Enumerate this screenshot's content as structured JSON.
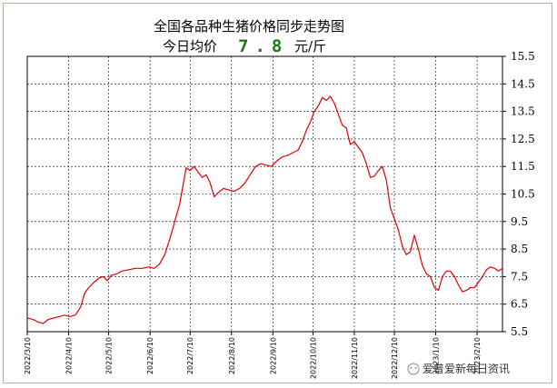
{
  "title": "全国各品种生猪价格同步走势图",
  "today": {
    "label": "今日均价",
    "value": "7.8",
    "unit": "元/斤",
    "value_color": "#1a7a1a"
  },
  "watermark": "爱普爱新每日资讯",
  "colors": {
    "line": "#e00000",
    "axis": "#000000",
    "grid": "#000000"
  },
  "chart_data": {
    "type": "line",
    "title": "全国各品种生猪价格同步走势图",
    "ylim": [
      5.5,
      15.5
    ],
    "yticks": [
      "15.5",
      "14.5",
      "13.5",
      "12.5",
      "11.5",
      "10.5",
      "9.5",
      "8.5",
      "7.5",
      "6.5",
      "5.5"
    ],
    "xlim": [
      "2022-03-10",
      "2023-03-01"
    ],
    "xticks": [
      "2022/3/10",
      "2022/4/10",
      "2022/5/10",
      "2022/6/10",
      "2022/7/10",
      "2022/8/10",
      "2022/9/10",
      "2022/10/10",
      "2022/11/10",
      "2022/12/10",
      "2023/1/10",
      "2023/2/10"
    ],
    "grid": true,
    "series": [
      {
        "points": [
          [
            "2022-03-10",
            6.0
          ],
          [
            "2022-03-14",
            5.95
          ],
          [
            "2022-03-18",
            5.85
          ],
          [
            "2022-03-22",
            5.8
          ],
          [
            "2022-03-26",
            5.95
          ],
          [
            "2022-03-30",
            6.0
          ],
          [
            "2022-04-03",
            6.05
          ],
          [
            "2022-04-07",
            6.1
          ],
          [
            "2022-04-11",
            6.05
          ],
          [
            "2022-04-15",
            6.1
          ],
          [
            "2022-04-19",
            6.4
          ],
          [
            "2022-04-22",
            6.9
          ],
          [
            "2022-04-25",
            7.1
          ],
          [
            "2022-04-29",
            7.3
          ],
          [
            "2022-05-03",
            7.45
          ],
          [
            "2022-05-06",
            7.5
          ],
          [
            "2022-05-09",
            7.35
          ],
          [
            "2022-05-12",
            7.55
          ],
          [
            "2022-05-16",
            7.6
          ],
          [
            "2022-05-20",
            7.7
          ],
          [
            "2022-05-25",
            7.75
          ],
          [
            "2022-05-30",
            7.8
          ],
          [
            "2022-06-04",
            7.8
          ],
          [
            "2022-06-09",
            7.85
          ],
          [
            "2022-06-13",
            7.8
          ],
          [
            "2022-06-17",
            7.95
          ],
          [
            "2022-06-21",
            8.3
          ],
          [
            "2022-06-25",
            8.9
          ],
          [
            "2022-06-29",
            9.6
          ],
          [
            "2022-07-02",
            10.1
          ],
          [
            "2022-07-05",
            10.9
          ],
          [
            "2022-07-07",
            11.45
          ],
          [
            "2022-07-10",
            11.35
          ],
          [
            "2022-07-13",
            11.5
          ],
          [
            "2022-07-16",
            11.3
          ],
          [
            "2022-07-19",
            11.1
          ],
          [
            "2022-07-22",
            11.2
          ],
          [
            "2022-07-25",
            10.9
          ],
          [
            "2022-07-28",
            10.4
          ],
          [
            "2022-07-31",
            10.55
          ],
          [
            "2022-08-04",
            10.7
          ],
          [
            "2022-08-08",
            10.65
          ],
          [
            "2022-08-12",
            10.6
          ],
          [
            "2022-08-16",
            10.7
          ],
          [
            "2022-08-20",
            10.9
          ],
          [
            "2022-08-24",
            11.2
          ],
          [
            "2022-08-28",
            11.5
          ],
          [
            "2022-09-01",
            11.6
          ],
          [
            "2022-09-05",
            11.55
          ],
          [
            "2022-09-09",
            11.5
          ],
          [
            "2022-09-13",
            11.7
          ],
          [
            "2022-09-17",
            11.85
          ],
          [
            "2022-09-21",
            11.9
          ],
          [
            "2022-09-25",
            12.0
          ],
          [
            "2022-09-29",
            12.1
          ],
          [
            "2022-10-02",
            12.4
          ],
          [
            "2022-10-05",
            12.8
          ],
          [
            "2022-10-08",
            13.1
          ],
          [
            "2022-10-11",
            13.5
          ],
          [
            "2022-10-14",
            13.7
          ],
          [
            "2022-10-17",
            14.0
          ],
          [
            "2022-10-20",
            13.9
          ],
          [
            "2022-10-23",
            14.05
          ],
          [
            "2022-10-26",
            13.8
          ],
          [
            "2022-10-29",
            13.4
          ],
          [
            "2022-11-01",
            13.0
          ],
          [
            "2022-11-04",
            12.9
          ],
          [
            "2022-11-07",
            12.3
          ],
          [
            "2022-11-10",
            12.4
          ],
          [
            "2022-11-13",
            12.2
          ],
          [
            "2022-11-16",
            12.0
          ],
          [
            "2022-11-19",
            11.6
          ],
          [
            "2022-11-22",
            11.1
          ],
          [
            "2022-11-25",
            11.15
          ],
          [
            "2022-11-28",
            11.35
          ],
          [
            "2022-12-01",
            11.5
          ],
          [
            "2022-12-04",
            11.0
          ],
          [
            "2022-12-07",
            10.0
          ],
          [
            "2022-12-10",
            9.6
          ],
          [
            "2022-12-13",
            9.2
          ],
          [
            "2022-12-16",
            8.6
          ],
          [
            "2022-12-19",
            8.3
          ],
          [
            "2022-12-22",
            8.4
          ],
          [
            "2022-12-25",
            9.0
          ],
          [
            "2022-12-28",
            8.5
          ],
          [
            "2022-12-31",
            7.9
          ],
          [
            "2023-01-03",
            7.6
          ],
          [
            "2023-01-06",
            7.5
          ],
          [
            "2023-01-09",
            7.1
          ],
          [
            "2023-01-12",
            7.0
          ],
          [
            "2023-01-15",
            7.5
          ],
          [
            "2023-01-18",
            7.7
          ],
          [
            "2023-01-21",
            7.7
          ],
          [
            "2023-01-24",
            7.5
          ],
          [
            "2023-01-27",
            7.2
          ],
          [
            "2023-01-30",
            6.95
          ],
          [
            "2023-02-02",
            7.0
          ],
          [
            "2023-02-05",
            7.1
          ],
          [
            "2023-02-08",
            7.1
          ],
          [
            "2023-02-11",
            7.3
          ],
          [
            "2023-02-14",
            7.5
          ],
          [
            "2023-02-17",
            7.75
          ],
          [
            "2023-02-20",
            7.85
          ],
          [
            "2023-02-23",
            7.8
          ],
          [
            "2023-02-26",
            7.7
          ],
          [
            "2023-03-01",
            7.8
          ]
        ]
      }
    ]
  }
}
